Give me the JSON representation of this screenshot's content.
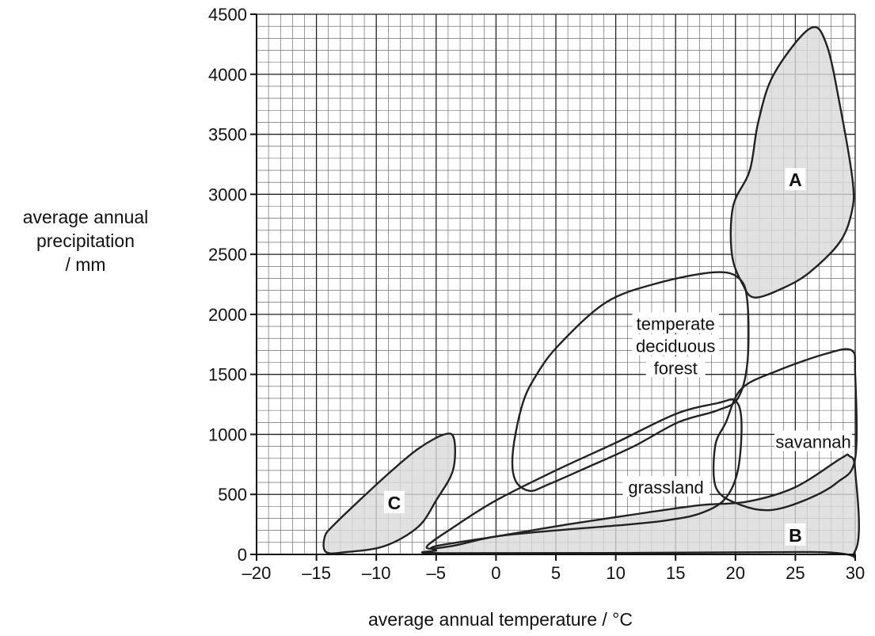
{
  "chart_data": {
    "type": "area",
    "xlabel": "average annual temperature / °C",
    "ylabel": [
      "average annual",
      "precipitation",
      "/ mm"
    ],
    "xlim": [
      -20,
      30
    ],
    "ylim": [
      0,
      4500
    ],
    "x_ticks": [
      -20,
      -15,
      -10,
      -5,
      0,
      5,
      10,
      15,
      20,
      25,
      30
    ],
    "y_ticks": [
      0,
      500,
      1000,
      1500,
      2000,
      2500,
      3000,
      3500,
      4000,
      4500
    ],
    "grid": true,
    "fill_color": "#d9d9d9",
    "line_color": "#222222",
    "regions": [
      {
        "name": "A",
        "shaded": true,
        "label": "A",
        "label_at": [
          25,
          3120
        ],
        "outline": [
          [
            26.2,
            4380
          ],
          [
            27.6,
            4250
          ],
          [
            28.8,
            3700
          ],
          [
            29.8,
            3100
          ],
          [
            29.7,
            2850
          ],
          [
            28.7,
            2600
          ],
          [
            26.2,
            2350
          ],
          [
            24,
            2220
          ],
          [
            21.6,
            2140
          ],
          [
            20.6,
            2250
          ],
          [
            19.7,
            2500
          ],
          [
            19.8,
            2900
          ],
          [
            21.2,
            3200
          ],
          [
            21.9,
            3600
          ],
          [
            23.2,
            4000
          ]
        ]
      },
      {
        "name": "temperate deciduous forest",
        "shaded": false,
        "label": [
          "temperate",
          "deciduous",
          "forest"
        ],
        "label_at": [
          15,
          1740
        ],
        "outline": [
          [
            1.4,
            850
          ],
          [
            2.2,
            1250
          ],
          [
            3.4,
            1500
          ],
          [
            5.3,
            1750
          ],
          [
            9.2,
            2100
          ],
          [
            13.5,
            2260
          ],
          [
            18.2,
            2350
          ],
          [
            20.3,
            2300
          ],
          [
            21,
            2100
          ],
          [
            21,
            1600
          ],
          [
            20.2,
            1300
          ],
          [
            18.5,
            1200
          ],
          [
            15.2,
            1100
          ],
          [
            11.5,
            900
          ],
          [
            7.5,
            720
          ],
          [
            4.3,
            580
          ],
          [
            2.8,
            530
          ],
          [
            1.6,
            620
          ]
        ]
      },
      {
        "name": "savannah",
        "shaded": false,
        "label": "savannah",
        "label_at": [
          26.5,
          940
        ],
        "outline": [
          [
            20.5,
            1380
          ],
          [
            23.5,
            1530
          ],
          [
            27.5,
            1670
          ],
          [
            29.7,
            1700
          ],
          [
            30,
            1500
          ],
          [
            30,
            800
          ],
          [
            28.5,
            600
          ],
          [
            26,
            460
          ],
          [
            23,
            370
          ],
          [
            20.5,
            410
          ],
          [
            18.4,
            550
          ],
          [
            18.3,
            900
          ],
          [
            19.2,
            1100
          ]
        ]
      },
      {
        "name": "grassland",
        "shaded": false,
        "label": "grassland",
        "label_at": [
          14.2,
          560
        ],
        "outline": [
          [
            -5.8,
            60
          ],
          [
            -3.5,
            230
          ],
          [
            0,
            450
          ],
          [
            5,
            700
          ],
          [
            10,
            930
          ],
          [
            15,
            1170
          ],
          [
            18.5,
            1260
          ],
          [
            20,
            1280
          ],
          [
            20.5,
            1100
          ],
          [
            20.2,
            700
          ],
          [
            19.1,
            460
          ],
          [
            17,
            340
          ],
          [
            14,
            280
          ],
          [
            10,
            240
          ],
          [
            5,
            200
          ],
          [
            0,
            150
          ],
          [
            -3.7,
            70
          ]
        ]
      },
      {
        "name": "B",
        "shaded": true,
        "label": "B",
        "label_at": [
          25,
          160
        ],
        "outline": [
          [
            -5,
            35
          ],
          [
            -5,
            70
          ],
          [
            0,
            150
          ],
          [
            6,
            250
          ],
          [
            12,
            340
          ],
          [
            17,
            410
          ],
          [
            21,
            440
          ],
          [
            25,
            560
          ],
          [
            28.8,
            800
          ],
          [
            29.5,
            820
          ],
          [
            30,
            700
          ],
          [
            30,
            30
          ],
          [
            26,
            20
          ],
          [
            -3.5,
            10
          ]
        ]
      },
      {
        "name": "C",
        "shaded": true,
        "label": "C",
        "label_at": [
          -8.5,
          430
        ],
        "outline": [
          [
            -14.2,
            20
          ],
          [
            -14.3,
            150
          ],
          [
            -13.5,
            250
          ],
          [
            -11.3,
            460
          ],
          [
            -8.9,
            680
          ],
          [
            -6.5,
            880
          ],
          [
            -4.3,
            1000
          ],
          [
            -3.5,
            960
          ],
          [
            -3.6,
            700
          ],
          [
            -5,
            450
          ],
          [
            -6.5,
            230
          ],
          [
            -9.3,
            70
          ],
          [
            -12.5,
            20
          ]
        ]
      }
    ]
  }
}
